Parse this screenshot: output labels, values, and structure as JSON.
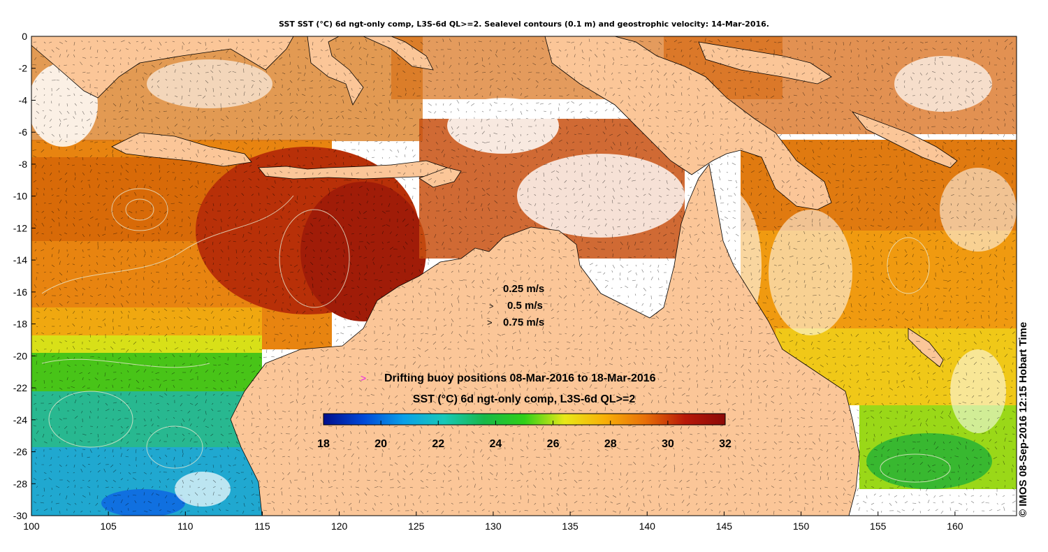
{
  "title": "SST SST (°C) 6d ngt-only comp, L3S-6d QL>=2. Sealevel contours (0.1 m) and geostrophic velocity: 14-Mar-2016.",
  "credit": "© IMOS 08-Sep-2016 12:15 Hobart Time",
  "colors": {
    "land": "#fbc698",
    "nodata": "#ffffff"
  },
  "map": {
    "lon_range": [
      100,
      164
    ],
    "lat_range": [
      -30,
      0
    ],
    "x_ticks": [
      "100",
      "105",
      "110",
      "115",
      "120",
      "125",
      "130",
      "135",
      "140",
      "145",
      "150",
      "155",
      "160"
    ],
    "y_ticks": [
      "0",
      "-2",
      "-4",
      "-6",
      "-8",
      "-10",
      "-12",
      "-14",
      "-16",
      "-18",
      "-20",
      "-22",
      "-24",
      "-26",
      "-28",
      "-30"
    ]
  },
  "velocity_legend": [
    "0.25 m/s",
    "0.5 m/s",
    "0.75 m/s"
  ],
  "buoy_legend": {
    "marker": ">",
    "label": "Drifting buoy positions 08-Mar-2016 to 18-Mar-2016"
  },
  "colorbar": {
    "label": "SST (°C) 6d ngt-only comp, L3S-6d QL>=2",
    "min": 18,
    "max": 32,
    "ticks": [
      "18",
      "20",
      "22",
      "24",
      "26",
      "28",
      "30",
      "32"
    ],
    "stops": [
      "#000e8c",
      "#0048d8",
      "#0aa0e8",
      "#18c8b8",
      "#18b848",
      "#30d018",
      "#e8e818",
      "#f8b008",
      "#e87008",
      "#b81808",
      "#8c0a08"
    ]
  }
}
